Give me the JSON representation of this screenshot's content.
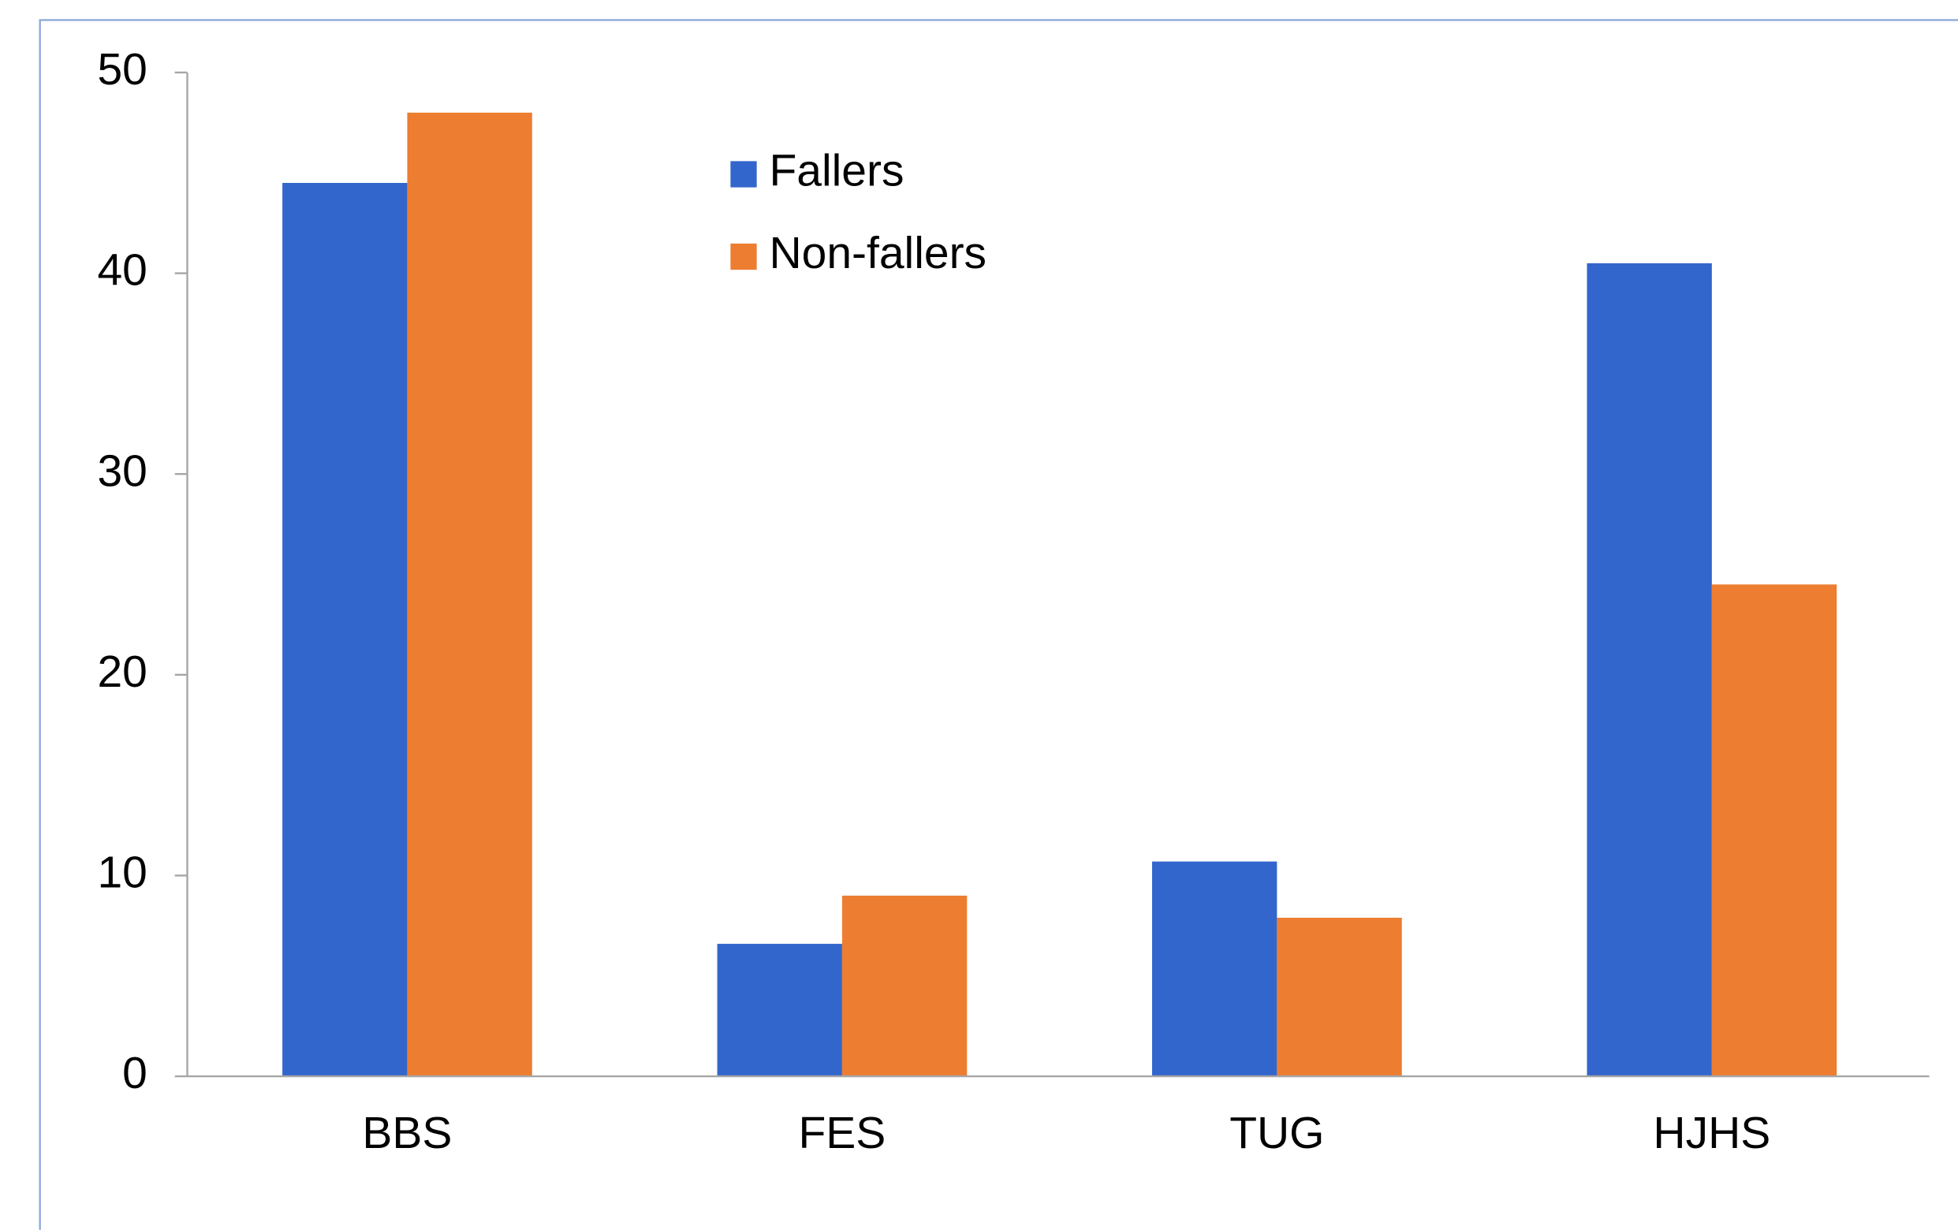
{
  "chart_data": {
    "type": "bar",
    "categories": [
      "BBS",
      "FES",
      "TUG",
      "HJHS"
    ],
    "series": [
      {
        "name": "Fallers",
        "color": "#3366cc",
        "values": [
          44.5,
          6.6,
          10.7,
          40.5
        ]
      },
      {
        "name": "Non-fallers",
        "color": "#ed7d31",
        "values": [
          48.0,
          9.0,
          7.9,
          24.5
        ]
      }
    ],
    "ylim": [
      0,
      50
    ],
    "yticks": [
      0,
      10,
      20,
      30,
      40,
      50
    ],
    "grid": false,
    "legend": "top"
  }
}
